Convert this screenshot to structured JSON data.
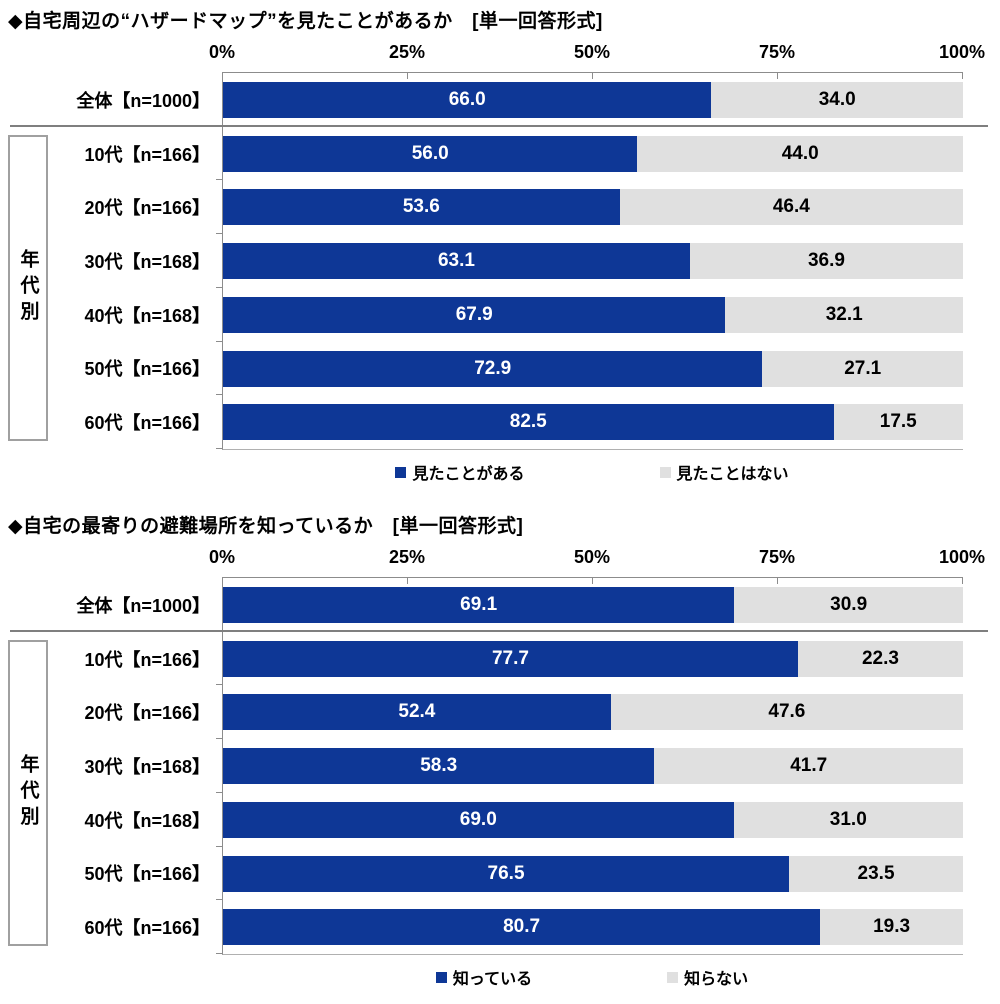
{
  "page": {
    "background": "#ffffff"
  },
  "colors": {
    "bar_blue": "#0e3796",
    "bar_gray": "#e0e0e0",
    "axis_line": "#8c8c8c",
    "separator": "#7f7f7f"
  },
  "chart_data": [
    {
      "type": "bar",
      "orientation": "horizontal",
      "stacked": true,
      "title": "◆自宅周辺の“ハザードマップ”を見たことがあるか　[単一回答形式]",
      "group_label": "年代別",
      "axis": {
        "position": "top",
        "xlim": [
          0,
          100
        ],
        "ticks": [
          "0%",
          "25%",
          "50%",
          "75%",
          "100%"
        ]
      },
      "categories": [
        "全体【n=1000】",
        "10代【n=166】",
        "20代【n=166】",
        "30代【n=168】",
        "40代【n=168】",
        "50代【n=166】",
        "60代【n=166】"
      ],
      "series": [
        {
          "name": "見たことがある",
          "color": "#0e3796",
          "text_color": "#ffffff",
          "values": [
            66.0,
            56.0,
            53.6,
            63.1,
            67.9,
            72.9,
            82.5
          ]
        },
        {
          "name": "見たことはない",
          "color": "#e0e0e0",
          "text_color": "#000000",
          "values": [
            34.0,
            44.0,
            46.4,
            36.9,
            32.1,
            27.1,
            17.5
          ]
        }
      ],
      "value_format": "one_decimal",
      "legend_position": "bottom"
    },
    {
      "type": "bar",
      "orientation": "horizontal",
      "stacked": true,
      "title": "◆自宅の最寄りの避難場所を知っているか　[単一回答形式]",
      "group_label": "年代別",
      "axis": {
        "position": "top",
        "xlim": [
          0,
          100
        ],
        "ticks": [
          "0%",
          "25%",
          "50%",
          "75%",
          "100%"
        ]
      },
      "categories": [
        "全体【n=1000】",
        "10代【n=166】",
        "20代【n=166】",
        "30代【n=168】",
        "40代【n=168】",
        "50代【n=166】",
        "60代【n=166】"
      ],
      "series": [
        {
          "name": "知っている",
          "color": "#0e3796",
          "text_color": "#ffffff",
          "values": [
            69.1,
            77.7,
            52.4,
            58.3,
            69.0,
            76.5,
            80.7
          ]
        },
        {
          "name": "知らない",
          "color": "#e0e0e0",
          "text_color": "#000000",
          "values": [
            30.9,
            22.3,
            47.6,
            41.7,
            31.0,
            23.5,
            19.3
          ]
        }
      ],
      "value_format": "one_decimal",
      "legend_position": "bottom"
    }
  ]
}
